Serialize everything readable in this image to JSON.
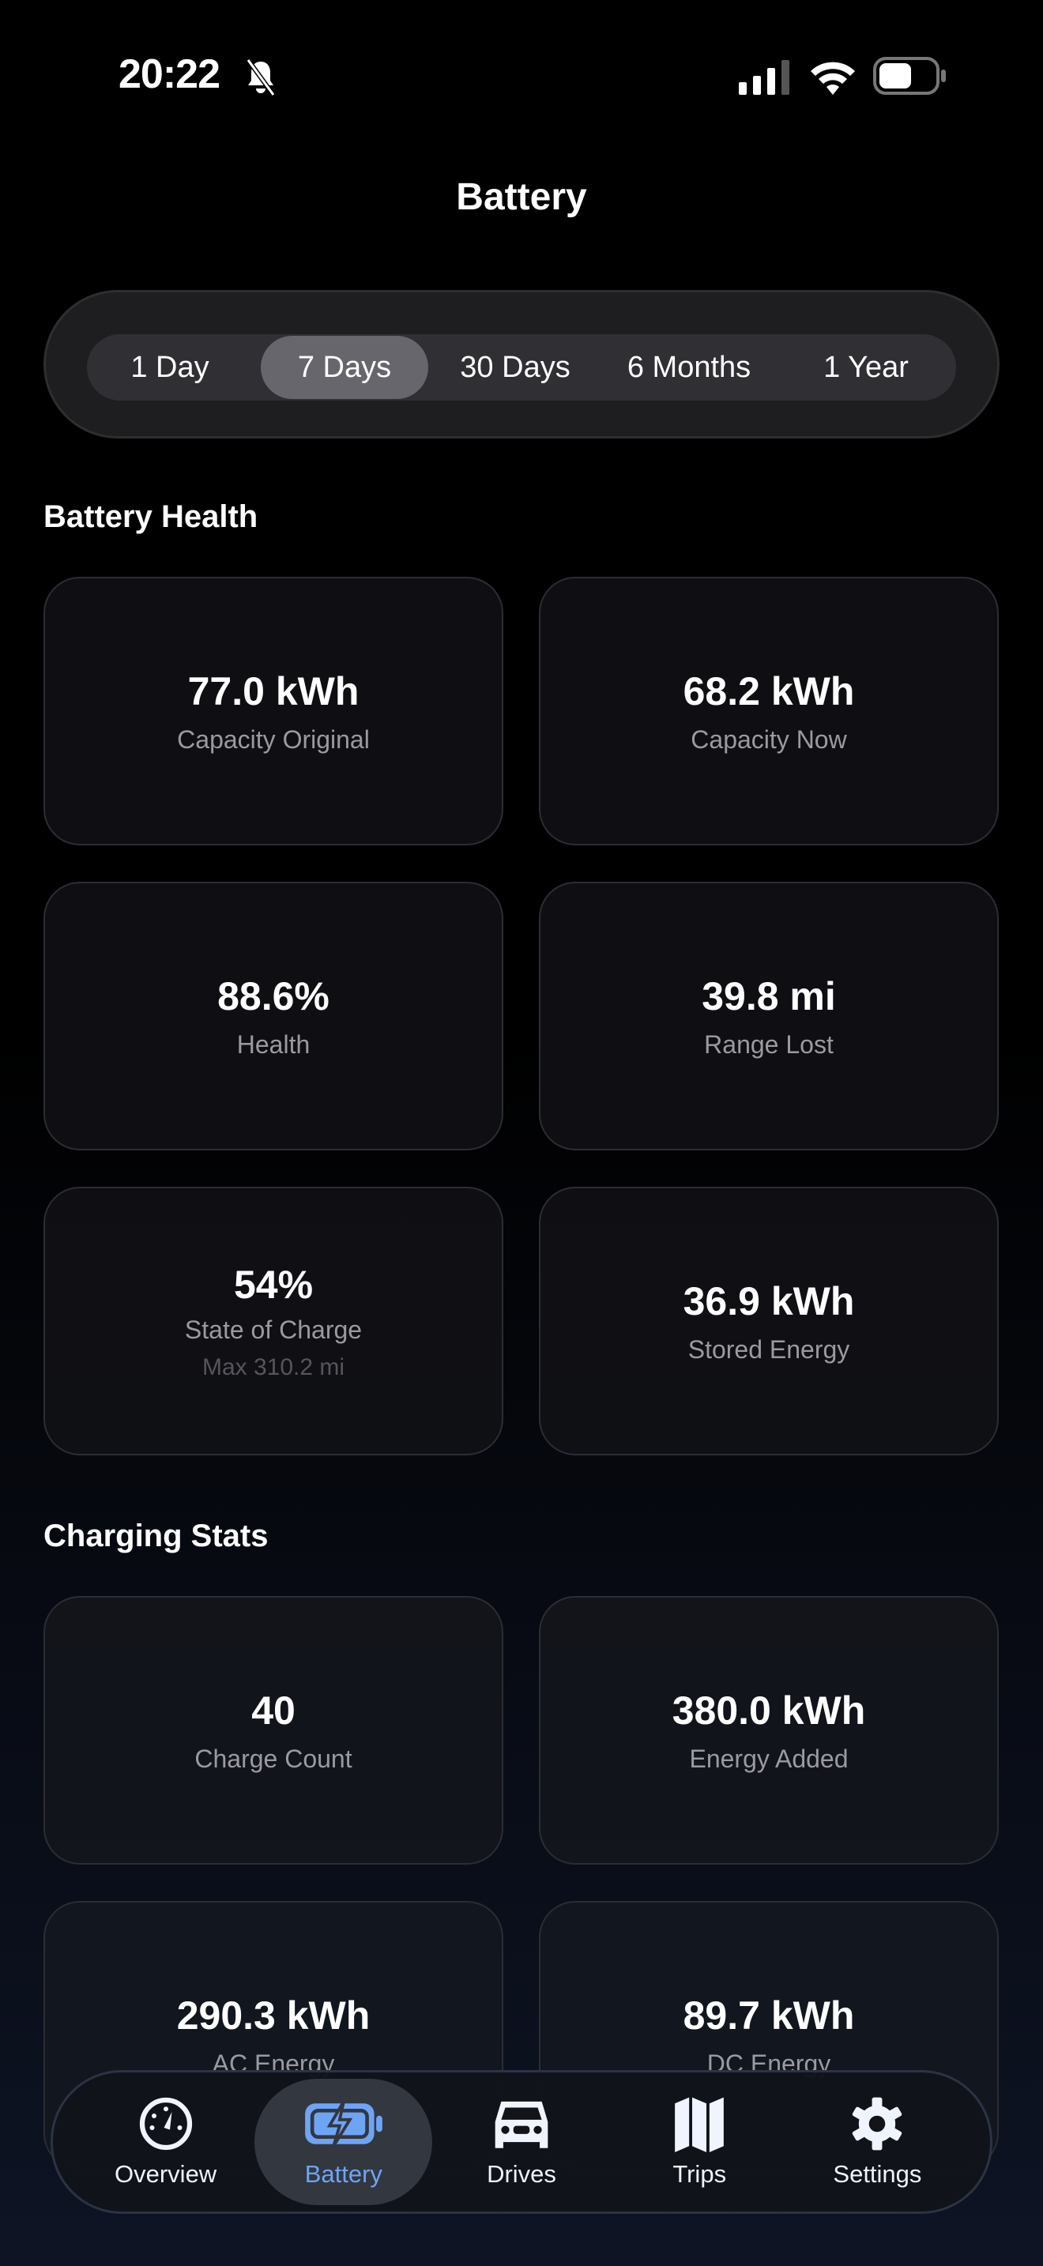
{
  "status_bar": {
    "time": "20:22",
    "icons": [
      "bell-slash-icon",
      "signal-icon",
      "wifi-icon",
      "battery-icon"
    ]
  },
  "header": {
    "title": "Battery"
  },
  "range": {
    "options": [
      "1 Day",
      "7 Days",
      "30 Days",
      "6 Months",
      "1 Year"
    ],
    "selected": "7 Days"
  },
  "battery_health": {
    "heading": "Battery Health",
    "cards": [
      {
        "value": "77.0 kWh",
        "label": "Capacity Original"
      },
      {
        "value": "68.2 kWh",
        "label": "Capacity Now"
      },
      {
        "value": "88.6%",
        "label": "Health"
      },
      {
        "value": "39.8 mi",
        "label": "Range Lost"
      },
      {
        "value": "54%",
        "label": "State of Charge",
        "sub": "Max 310.2 mi"
      },
      {
        "value": "36.9 kWh",
        "label": "Stored Energy"
      }
    ]
  },
  "charging_stats": {
    "heading": "Charging Stats",
    "cards": [
      {
        "value": "40",
        "label": "Charge Count"
      },
      {
        "value": "380.0 kWh",
        "label": "Energy Added"
      },
      {
        "value": "290.3 kWh",
        "label": "AC Energy"
      },
      {
        "value": "89.7 kWh",
        "label": "DC Energy"
      }
    ]
  },
  "tab_bar": {
    "accent": "#6fa4f5",
    "items": [
      {
        "label": "Overview",
        "icon": "speedometer-icon"
      },
      {
        "label": "Battery",
        "icon": "battery-bolt-icon",
        "active": true
      },
      {
        "label": "Drives",
        "icon": "car-icon"
      },
      {
        "label": "Trips",
        "icon": "map-icon"
      },
      {
        "label": "Settings",
        "icon": "gear-icon"
      }
    ]
  }
}
